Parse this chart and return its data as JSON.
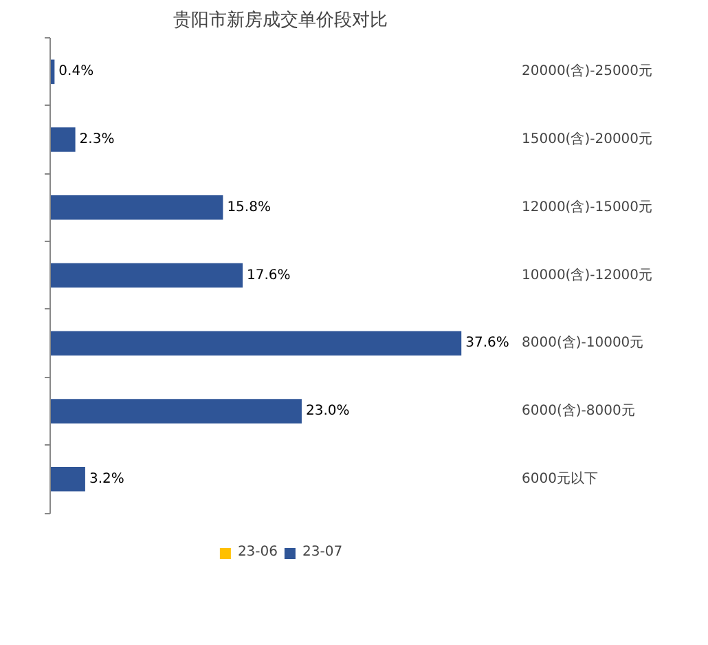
{
  "chart_data": {
    "type": "bar",
    "orientation": "horizontal",
    "title": "贵阳市新房成交单价段对比",
    "categories": [
      "20000(含)-25000元",
      "15000(含)-20000元",
      "12000(含)-15000元",
      "10000(含)-12000元",
      "8000(含)-10000元",
      "6000(含)-8000元",
      "6000元以下"
    ],
    "series": [
      {
        "name": "23-06",
        "color": "#ffc000",
        "values": [
          null,
          null,
          null,
          null,
          null,
          null,
          null
        ]
      },
      {
        "name": "23-07",
        "color": "#2f5597",
        "values": [
          0.4,
          2.3,
          15.8,
          17.6,
          37.6,
          23.0,
          3.2
        ],
        "value_labels": [
          "0.4%",
          "2.3%",
          "15.8%",
          "17.6%",
          "37.6%",
          "23.0%",
          "3.2%"
        ]
      }
    ],
    "legend": "bottom",
    "grid": false
  }
}
